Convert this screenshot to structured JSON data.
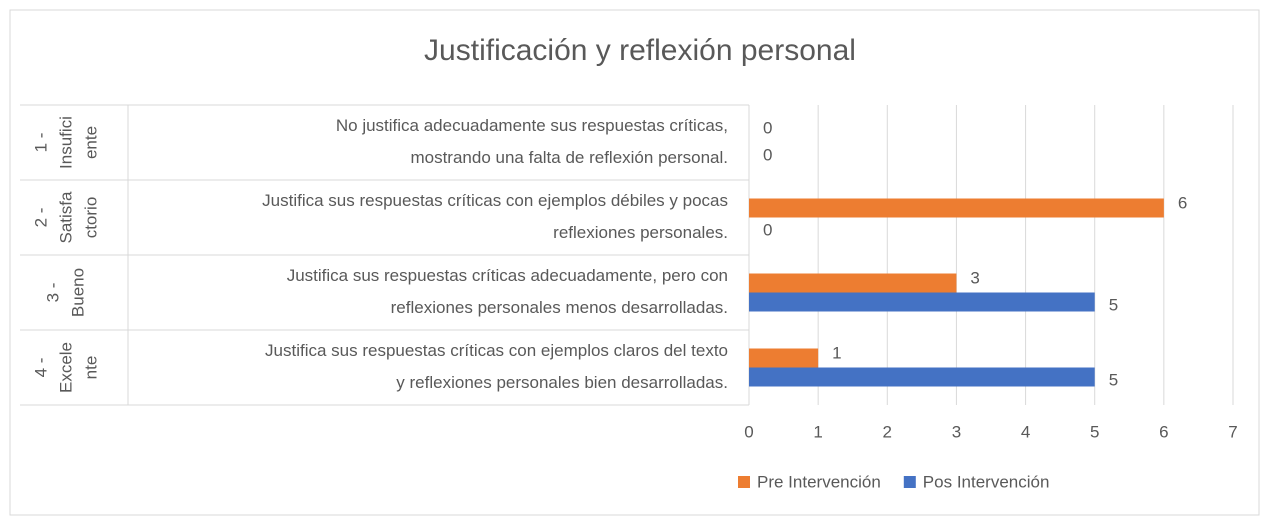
{
  "chart_data": {
    "type": "bar",
    "orientation": "horizontal",
    "title": "Justificación y reflexión personal",
    "group_labels": [
      [
        "1 -",
        "Insufici",
        "ente"
      ],
      [
        "2 -",
        "Satisfa",
        "ctorio"
      ],
      [
        "3 -",
        "Bueno"
      ],
      [
        "4 -",
        "Excele",
        "nte"
      ]
    ],
    "categories": [
      [
        "No justifica adecuadamente sus respuestas críticas,",
        "mostrando una falta de reflexión personal."
      ],
      [
        "Justifica sus respuestas críticas con ejemplos débiles y pocas",
        "reflexiones personales."
      ],
      [
        "Justifica sus respuestas críticas adecuadamente, pero con",
        "reflexiones personales menos desarrolladas."
      ],
      [
        "Justifica sus respuestas críticas con ejemplos claros del texto",
        "y reflexiones personales bien desarrolladas."
      ]
    ],
    "series": [
      {
        "name": "Pre Intervención",
        "color": "#ed7d31",
        "values": [
          0,
          6,
          3,
          1
        ]
      },
      {
        "name": "Pos Intervención",
        "color": "#4472c4",
        "values": [
          0,
          0,
          5,
          5
        ]
      }
    ],
    "xlim": [
      0,
      7
    ],
    "xticks": [
      0,
      1,
      2,
      3,
      4,
      5,
      6,
      7
    ],
    "grid": true,
    "legend": "bottom"
  }
}
